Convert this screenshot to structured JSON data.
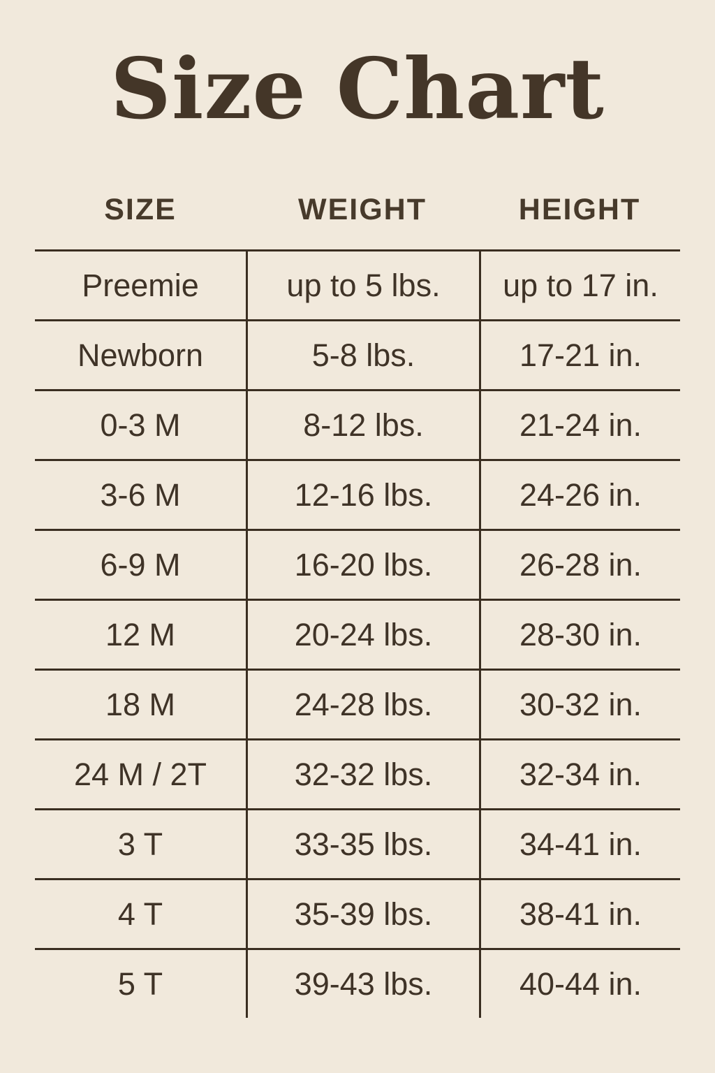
{
  "colors": {
    "background": "#f1e9dc",
    "text": "#3f3327",
    "line": "#3a2e21"
  },
  "chart_data": {
    "type": "table",
    "title": "Size Chart",
    "columns": [
      "SIZE",
      "WEIGHT",
      "HEIGHT"
    ],
    "rows": [
      [
        "Preemie",
        "up to 5 lbs.",
        "up to 17 in."
      ],
      [
        "Newborn",
        "5-8 lbs.",
        "17-21 in."
      ],
      [
        "0-3 M",
        "8-12 lbs.",
        "21-24 in."
      ],
      [
        "3-6 M",
        "12-16 lbs.",
        "24-26 in."
      ],
      [
        "6-9 M",
        "16-20 lbs.",
        "26-28 in."
      ],
      [
        "12 M",
        "20-24 lbs.",
        "28-30 in."
      ],
      [
        "18 M",
        "24-28 lbs.",
        "30-32 in."
      ],
      [
        "24 M / 2T",
        "32-32 lbs.",
        "32-34 in."
      ],
      [
        "3 T",
        "33-35 lbs.",
        "34-41 in."
      ],
      [
        "4 T",
        "35-39 lbs.",
        "38-41 in."
      ],
      [
        "5 T",
        "39-43 lbs.",
        "40-44 in."
      ]
    ]
  }
}
